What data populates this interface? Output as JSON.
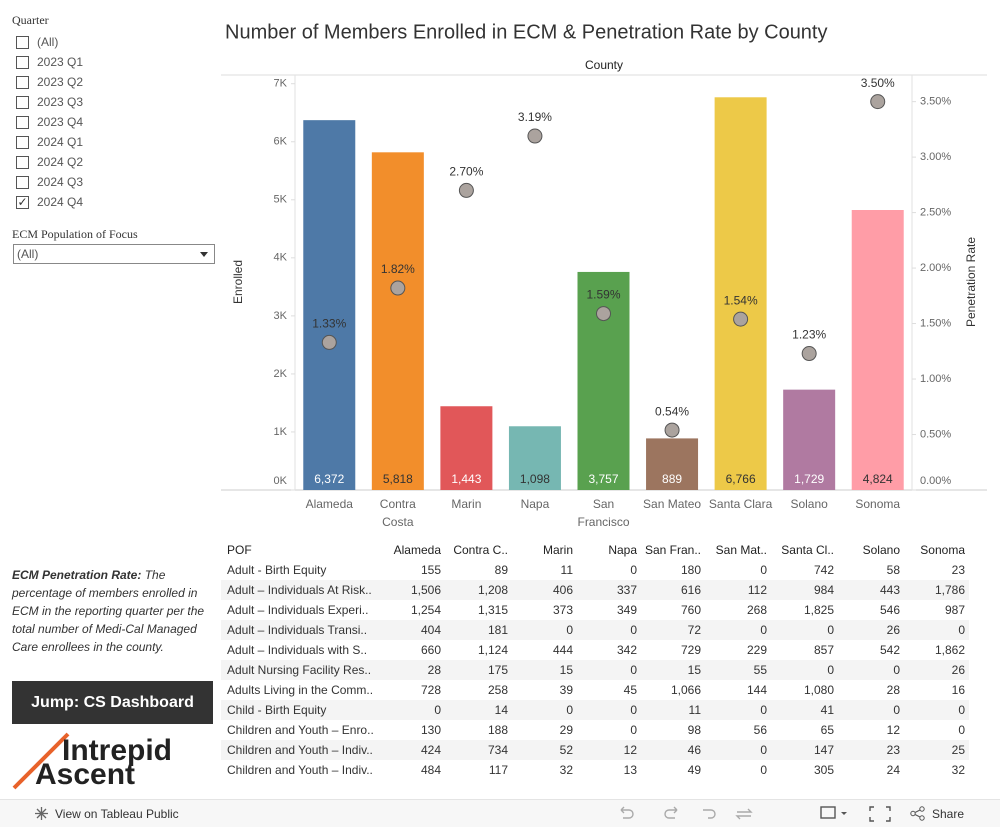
{
  "filters": {
    "quarter": {
      "title": "Quarter",
      "options": [
        {
          "label": "(All)",
          "checked": false
        },
        {
          "label": "2023 Q1",
          "checked": false
        },
        {
          "label": "2023 Q2",
          "checked": false
        },
        {
          "label": "2023 Q3",
          "checked": false
        },
        {
          "label": "2023 Q4",
          "checked": false
        },
        {
          "label": "2024 Q1",
          "checked": false
        },
        {
          "label": "2024 Q2",
          "checked": false
        },
        {
          "label": "2024 Q3",
          "checked": false
        },
        {
          "label": "2024 Q4",
          "checked": true
        }
      ]
    },
    "population": {
      "title": "ECM Population of Focus",
      "selected": "(All)"
    }
  },
  "note": {
    "term": "ECM Penetration Rate:",
    "text": "The percentage of members enrolled in ECM in the reporting quarter per the total number of Medi-Cal Managed Care enrollees in the county."
  },
  "button": "Jump: CS Dashboard",
  "logo": [
    "Intrepid",
    "Ascent"
  ],
  "chart_data": {
    "type": "bar",
    "title": "Number of Members Enrolled in ECM & Penetration Rate by County",
    "x_label": "County",
    "y_label": "Enrolled",
    "y2_label": "Penetration Rate",
    "categories": [
      "Alameda",
      "Contra Costa",
      "Marin",
      "Napa",
      "San Francisco",
      "San Mateo",
      "Santa Clara",
      "Solano",
      "Sonoma"
    ],
    "series": [
      {
        "type": "bar",
        "colors": [
          "#4e79a7",
          "#f28e2b",
          "#e15759",
          "#76b7b2",
          "#59a14f",
          "#9c755f",
          "#edc948",
          "#b07aa1",
          "#ff9da7"
        ],
        "values": [
          6372,
          5818,
          1443,
          1098,
          3757,
          889,
          6766,
          1729,
          4824
        ],
        "value_labels": [
          "6,372",
          "5,818",
          "1,443",
          "1,098",
          "3,757",
          "889",
          "6,766",
          "1,729",
          "4,824"
        ]
      },
      {
        "type": "scatter",
        "axis": "y2",
        "color": "#aba39e",
        "values": [
          1.33,
          1.82,
          2.7,
          3.19,
          1.59,
          0.54,
          1.54,
          1.23,
          3.5
        ],
        "value_labels": [
          "1.33%",
          "1.82%",
          "2.70%",
          "3.19%",
          "1.59%",
          "0.54%",
          "1.54%",
          "1.23%",
          "3.50%"
        ]
      }
    ],
    "ylim": [
      0,
      7150
    ],
    "yticks": [
      {
        "value": 0,
        "label": "0K"
      },
      {
        "value": 1000,
        "label": "1K"
      },
      {
        "value": 2000,
        "label": "2K"
      },
      {
        "value": 3000,
        "label": "3K"
      },
      {
        "value": 4000,
        "label": "4K"
      },
      {
        "value": 5000,
        "label": "5K"
      },
      {
        "value": 6000,
        "label": "6K"
      },
      {
        "value": 7000,
        "label": "7K"
      }
    ],
    "y2lim": [
      0,
      3.74
    ],
    "y2ticks": [
      {
        "value": 0,
        "label": "0.00%"
      },
      {
        "value": 0.5,
        "label": "0.50%"
      },
      {
        "value": 1,
        "label": "1.00%"
      },
      {
        "value": 1.5,
        "label": "1.50%"
      },
      {
        "value": 2,
        "label": "2.00%"
      },
      {
        "value": 2.5,
        "label": "2.50%"
      },
      {
        "value": 3,
        "label": "3.00%"
      },
      {
        "value": 3.5,
        "label": "3.50%"
      }
    ],
    "grid": false
  },
  "table": {
    "header": [
      "POF",
      "Alameda",
      "Contra C..",
      "Marin",
      "Napa",
      "San Fran..",
      "San Mat..",
      "Santa Cl..",
      "Solano",
      "Sonoma"
    ],
    "rows": [
      [
        "Adult - Birth Equity",
        "155",
        "89",
        "11",
        "0",
        "180",
        "0",
        "742",
        "58",
        "23"
      ],
      [
        "Adult – Individuals At Risk..",
        "1,506",
        "1,208",
        "406",
        "337",
        "616",
        "112",
        "984",
        "443",
        "1,786"
      ],
      [
        "Adult – Individuals Experi..",
        "1,254",
        "1,315",
        "373",
        "349",
        "760",
        "268",
        "1,825",
        "546",
        "987"
      ],
      [
        "Adult – Individuals Transi..",
        "404",
        "181",
        "0",
        "0",
        "72",
        "0",
        "0",
        "26",
        "0"
      ],
      [
        "Adult – Individuals with S..",
        "660",
        "1,124",
        "444",
        "342",
        "729",
        "229",
        "857",
        "542",
        "1,862"
      ],
      [
        "Adult Nursing Facility Res..",
        "28",
        "175",
        "15",
        "0",
        "15",
        "55",
        "0",
        "0",
        "26"
      ],
      [
        "Adults Living in the Comm..",
        "728",
        "258",
        "39",
        "45",
        "1,066",
        "144",
        "1,080",
        "28",
        "16"
      ],
      [
        "Child - Birth Equity",
        "0",
        "14",
        "0",
        "0",
        "11",
        "0",
        "41",
        "0",
        "0"
      ],
      [
        "Children and Youth – Enro..",
        "130",
        "188",
        "29",
        "0",
        "98",
        "56",
        "65",
        "12",
        "0"
      ],
      [
        "Children and Youth – Indiv..",
        "424",
        "734",
        "52",
        "12",
        "46",
        "0",
        "147",
        "23",
        "25"
      ],
      [
        "Children and Youth – Indiv..",
        "484",
        "117",
        "32",
        "13",
        "49",
        "0",
        "305",
        "24",
        "32"
      ]
    ]
  },
  "toolbar": {
    "view": "View on Tableau Public",
    "share": "Share"
  }
}
